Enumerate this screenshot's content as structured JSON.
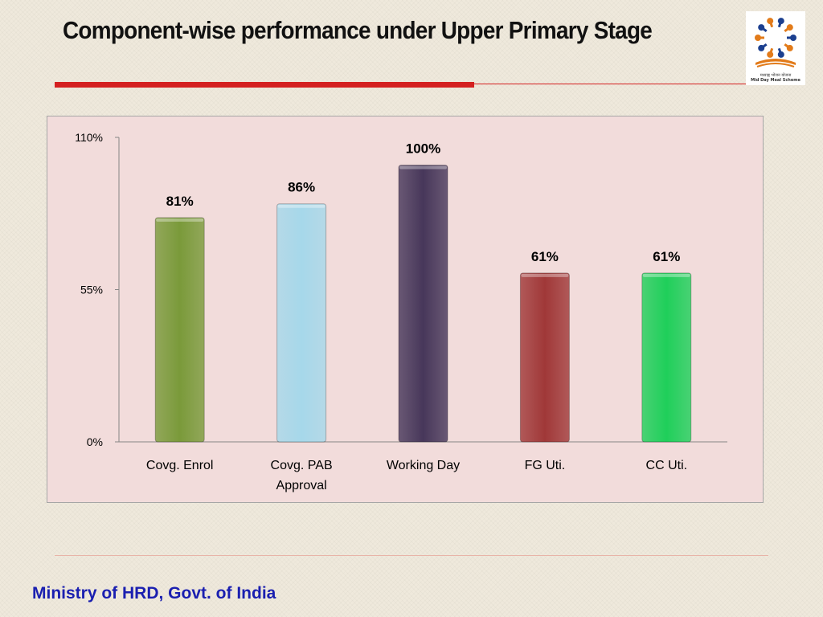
{
  "slide": {
    "title": "Component-wise performance under Upper Primary Stage",
    "footer": "Ministry of HRD, Govt. of India",
    "logo": {
      "icon": "mid-day-meal-logo",
      "text_hindi": "मध्याह्न भोजन योजना",
      "text_english": "Mid Day Meal Scheme"
    },
    "accent_color": "#d42020",
    "footer_color": "#1a1fb0"
  },
  "chart_data": {
    "type": "bar",
    "title": "",
    "xlabel": "",
    "ylabel": "",
    "categories": [
      [
        "Covg. Enrol"
      ],
      [
        "Covg. PAB",
        "Approval"
      ],
      [
        "Working Day"
      ],
      [
        "FG Uti."
      ],
      [
        "CC Uti."
      ]
    ],
    "values": [
      81,
      86,
      100,
      61,
      61
    ],
    "data_labels": [
      "81%",
      "86%",
      "100%",
      "61%",
      "61%"
    ],
    "colors": [
      "#7a9a3a",
      "#a6d8ea",
      "#47375a",
      "#a03838",
      "#1fcf5a"
    ],
    "ylim": [
      0,
      110
    ],
    "yticks": [
      0,
      55,
      110
    ],
    "ytick_labels": [
      "0%",
      "55%",
      "110%"
    ],
    "grid": false,
    "legend": "none",
    "background": "#f2dcdb"
  }
}
